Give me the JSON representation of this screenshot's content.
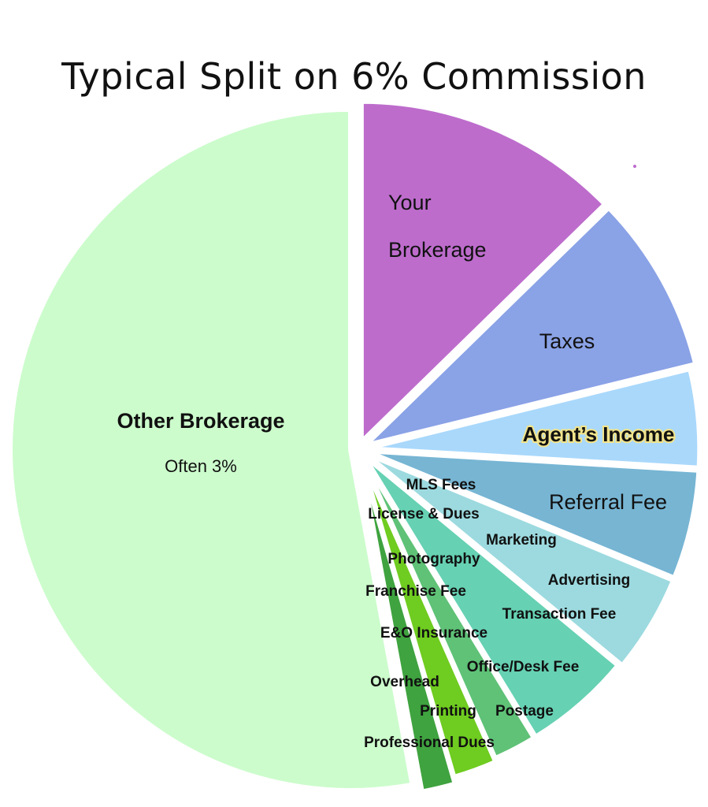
{
  "chart_data": {
    "type": "pie",
    "title": "Typical Split on 6%  Commission",
    "slices": [
      {
        "label": "Your Brokerage",
        "lines": [
          "Your",
          "Brokerage"
        ],
        "value": 0.12,
        "color": "#bd6ccc"
      },
      {
        "label": "Taxes",
        "lines": [
          "Taxes"
        ],
        "value": 0.08,
        "color": "#8aa2e6"
      },
      {
        "label": "Agent’s Income",
        "lines": [
          "Agent’s Income"
        ],
        "value": 0.045,
        "color": "#a9d8fb",
        "highlight": true
      },
      {
        "label": "Referral Fee",
        "lines": [
          "Referral Fee"
        ],
        "value": 0.05,
        "color": "#77b5d3"
      },
      {
        "label": "Advertising / Marketing / MLS Fees",
        "lines": [],
        "value": 0.045,
        "color": "#9cdadf"
      },
      {
        "label": "Transaction Fee / Office/Desk Fee / Postage",
        "lines": [],
        "value": 0.05,
        "color": "#66d1b3"
      },
      {
        "label": "Printing / E&O Insurance",
        "lines": [],
        "value": 0.02,
        "color": "#5fc277"
      },
      {
        "label": "Overhead / Franchise Fee / Photography",
        "lines": [],
        "value": 0.02,
        "color": "#6fcc20"
      },
      {
        "label": "Professional Dues / License & Dues",
        "lines": [],
        "value": 0.015,
        "color": "#3fa33f"
      },
      {
        "label": "Other Brokerage",
        "lines": [
          "Other Brokerage",
          "Often 3%"
        ],
        "value": 0.5,
        "color": "#ccfccc"
      }
    ],
    "small_labels": [
      "MLS Fees",
      "License & Dues",
      "Marketing",
      "Photography",
      "Advertising",
      "Franchise Fee",
      "Transaction Fee",
      "E&O Insurance",
      "Office/Desk Fee",
      "Overhead",
      "Printing",
      "Postage",
      "Professional Dues"
    ]
  }
}
